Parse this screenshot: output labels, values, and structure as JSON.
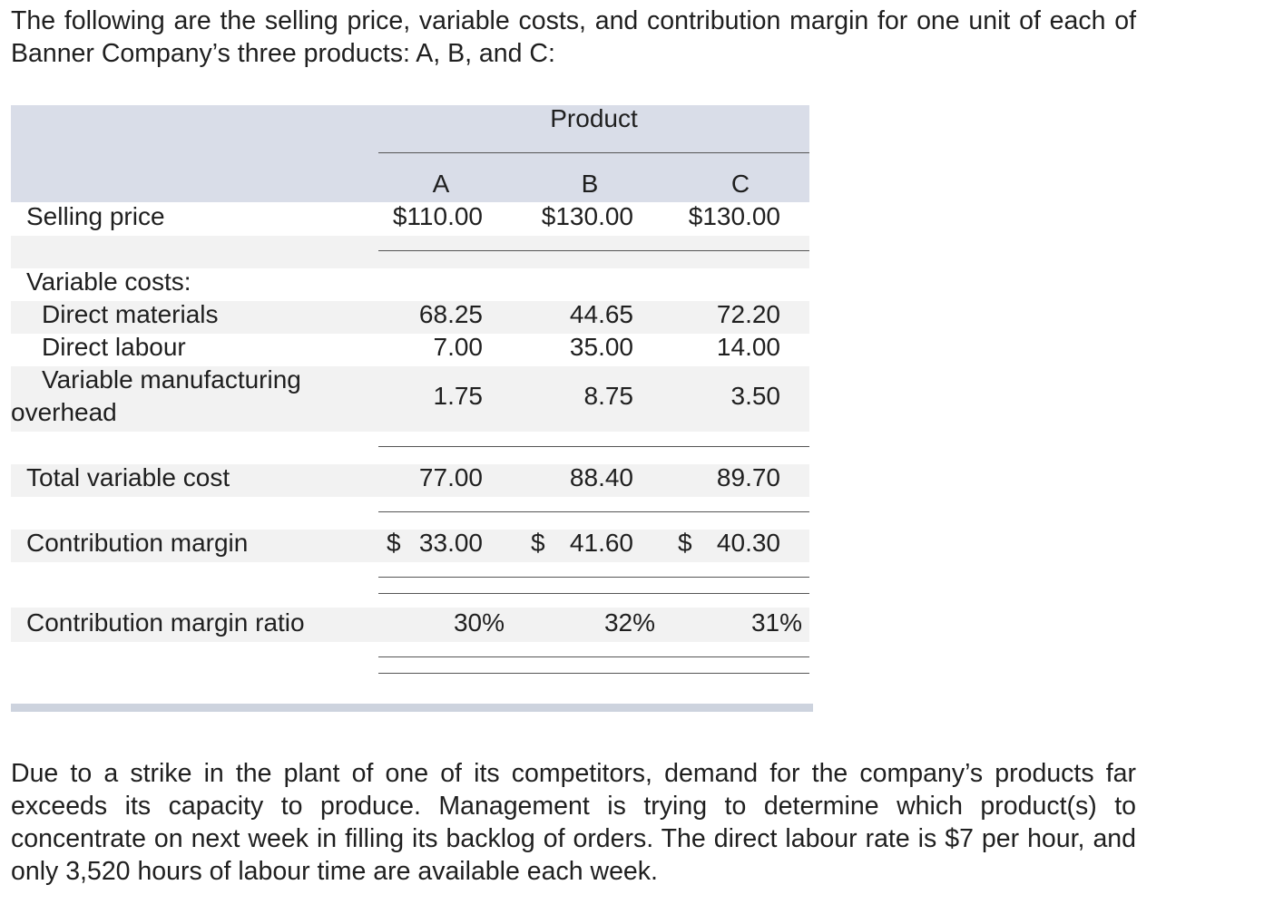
{
  "intro": "The following are the selling price, variable costs, and contribution margin for one unit of each of Banner Company’s three products: A, B, and C:",
  "table": {
    "group_header": "Product",
    "columns": [
      "A",
      "B",
      "C"
    ],
    "selling_price": {
      "label": "Selling price",
      "values": [
        "$110.00",
        "$130.00",
        "$130.00"
      ]
    },
    "variable_costs_heading": "Variable costs:",
    "direct_materials": {
      "label": "Direct materials",
      "values": [
        "68.25",
        "44.65",
        "72.20"
      ]
    },
    "direct_labour": {
      "label": "Direct labour",
      "values": [
        "7.00",
        "35.00",
        "14.00"
      ]
    },
    "variable_overhead": {
      "label_line1": "Variable manufacturing",
      "label_line2": "overhead",
      "values": [
        "1.75",
        "8.75",
        "3.50"
      ]
    },
    "total_variable_cost": {
      "label": "Total variable cost",
      "values": [
        "77.00",
        "88.40",
        "89.70"
      ]
    },
    "contribution_margin": {
      "label": "Contribution margin",
      "currency": "$",
      "values": [
        "33.00",
        "41.60",
        "40.30"
      ]
    },
    "contribution_margin_ratio": {
      "label": "Contribution margin ratio",
      "values": [
        "30%",
        "32%",
        "31%"
      ]
    }
  },
  "closing": "Due to a strike in the plant of one of its competitors, demand for the company’s products far exceeds its capacity to produce. Management is trying to determine which product(s) to concentrate on next week in filling its backlog of orders. The direct labour rate is $7 per hour, and only 3,520 hours of labour time are available each week."
}
